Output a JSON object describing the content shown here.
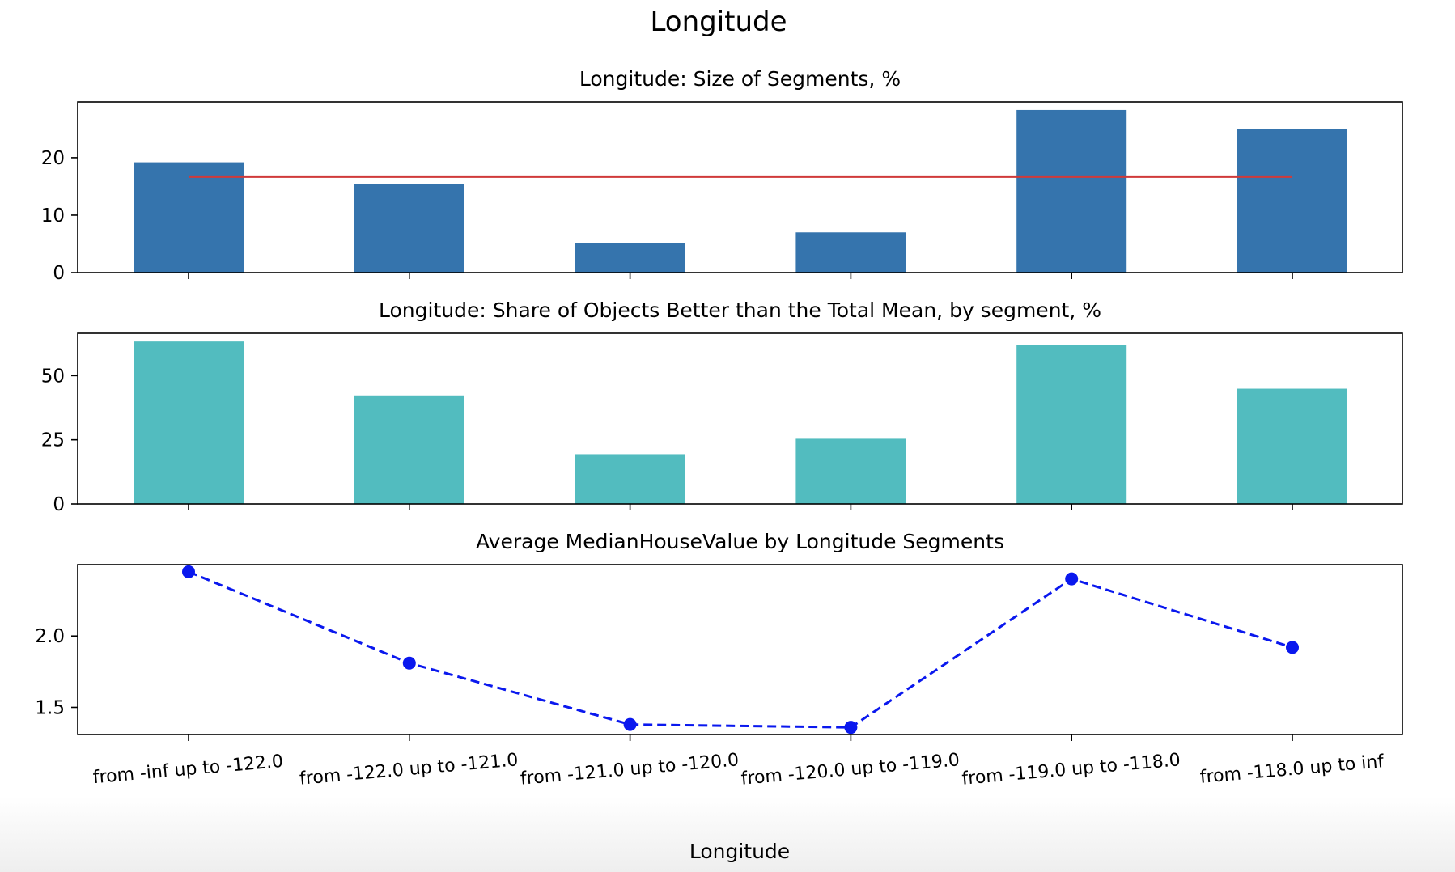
{
  "figure": {
    "title": "Longitude",
    "xlabel": "Longitude"
  },
  "chart_data": [
    {
      "type": "bar",
      "title": "Longitude: Size of Segments, %",
      "categories": [
        "from -inf up to -122.0",
        "from -122.0 up to -121.0",
        "from -121.0 up to -120.0",
        "from -120.0 up to -119.0",
        "from -119.0 up to -118.0",
        "from -118.0 up to inf"
      ],
      "values": [
        19.2,
        15.4,
        5.1,
        7.0,
        28.3,
        25.0
      ],
      "reference_line": 16.7,
      "reference_color": "#d03a3a",
      "bar_color": "#3574ad",
      "ylim": [
        0,
        29.7
      ],
      "yticks": [
        0,
        10,
        20
      ],
      "show_xticklabels": false
    },
    {
      "type": "bar",
      "title": "Longitude: Share of Objects Better than the Total Mean, by segment, %",
      "categories": [
        "from -inf up to -122.0",
        "from -122.0 up to -121.0",
        "from -121.0 up to -120.0",
        "from -120.0 up to -119.0",
        "from -119.0 up to -118.0",
        "from -118.0 up to inf"
      ],
      "values": [
        63.3,
        42.3,
        19.4,
        25.4,
        62.0,
        44.9
      ],
      "bar_color": "#52bcbf",
      "ylim": [
        0,
        66.5
      ],
      "yticks": [
        0,
        25,
        50
      ],
      "show_xticklabels": false
    },
    {
      "type": "line",
      "title": "Average MedianHouseValue by Longitude Segments",
      "categories": [
        "from -inf up to -122.0",
        "from -122.0 up to -121.0",
        "from -121.0 up to -120.0",
        "from -120.0 up to -119.0",
        "from -119.0 up to -118.0",
        "from -118.0 up to inf"
      ],
      "values": [
        2.45,
        1.81,
        1.38,
        1.36,
        2.4,
        1.92
      ],
      "line_color": "#0a18ee",
      "line_style": "dashed",
      "marker": "circle",
      "ylim": [
        1.31,
        2.5
      ],
      "yticks": [
        1.5,
        2.0
      ],
      "ytick_labels": [
        "1.5",
        "2.0"
      ],
      "show_xticklabels": true
    }
  ]
}
